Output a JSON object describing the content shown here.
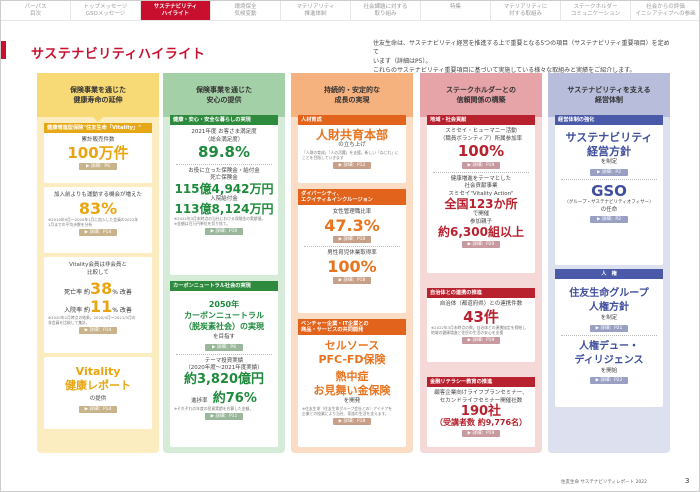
{
  "tabs": [
    {
      "label": "パーパス\n目次",
      "active": false
    },
    {
      "label": "トップメッセージ\nGSOメッセージ",
      "active": false
    },
    {
      "label": "サステナビリティ\nハイライト",
      "active": true
    },
    {
      "label": "環境保全\n気候変動",
      "active": false
    },
    {
      "label": "マテリアリティ\n推進体制",
      "active": false
    },
    {
      "label": "社会課題に対する\n取り組み",
      "active": false
    },
    {
      "label": "特集",
      "active": false
    },
    {
      "label": "マテリアリティに\n対する取組み",
      "active": false
    },
    {
      "label": "ステークホルダー\nコミュニケーション",
      "active": false
    },
    {
      "label": "社会からの評価\nイニシアティブへの参画",
      "active": false
    }
  ],
  "title": "サステナビリティハイライト",
  "intro": [
    "住友生命は、サステナビリティ経営を推進する上で重要となる5つの項目（サステナビリティ重要項目）を定めて",
    "います（詳細はP5）。",
    "これらのサステナビリティ重要項目に基づいて実施している様々な取組みと実績をご紹介します。"
  ],
  "columns": {
    "c1": {
      "header": "保険事業を通じた\n健康寿命の延伸",
      "card1": {
        "head": "健康増進型保険\"住友生命「Vitality」\"",
        "l1": "累計販売件数",
        "v1": "100万件",
        "pill": "▶ 詳細：P6"
      },
      "card2": {
        "l1": "加入前よりも運動する機会が増えた",
        "v1": "83%",
        "note": "※2019年9月〜2020年1月に加入した会員の2022年\n1月までの平均歩数を分析",
        "pill": "▶ 詳細：P14"
      },
      "card3": {
        "l1": "Vitality会員は非会員と\n比較して",
        "r1a": "死亡率 約",
        "r1b": "38",
        "r1c": "% 改善",
        "r2a": "入院率 約",
        "r2b": "11",
        "r2c": "% 改善",
        "note": "※2020年2月時点の結果。2020/4月〜2021/3月の\n非会員を比較して集計。",
        "pill": "▶ 詳細：P14"
      },
      "card4": {
        "v1": "Vitality\n健康レポート",
        "l1": "の提供",
        "pill": "▶ 詳細：P14"
      }
    },
    "c2": {
      "header": "保険事業を通じた\n安心の提供",
      "card1": {
        "head": "健康・安心・安全な暮らしの実現",
        "l1": "2021年度 お客さま満足度\n（総合満足度）",
        "v1": "89.8%",
        "l2": "お役に立った保険金・給付金",
        "l3": "死亡保険金",
        "v2": "115億4,942万円",
        "l4": "入院給付金",
        "v3": "113億8,124万円",
        "note": "※2022年3月末時点の当社における保険金の実績値。\n※金額は百万円単位を切り捨て。",
        "pill": "▶ 詳細：P16"
      },
      "card2": {
        "head": "カーボンニュートラル社会の実現",
        "v1": "2050年\nカーボンニュートラル\n（脱炭素社会）の実現",
        "l1": "を目指す",
        "pill": "▶ 詳細：P8",
        "l2": "テーマ投資実績\n（2020年度〜2021年度実績）",
        "v2": "約3,820億円",
        "l3": "進捗率",
        "v3": "約76%",
        "note": "※それぞれの年度の投資実績を合算した金額。",
        "pill2": "▶ 詳細：P11"
      }
    },
    "c3": {
      "header": "持続的・安定的な\n成長の実現",
      "card1": {
        "head": "人材育成",
        "v1": "人財共育本部",
        "l1": "の立ち上げ",
        "note": "「人財の育成」「人の活躍」を支援。新しい「ねじれ」に\nことを目指していきます",
        "pill": "▶ 詳細：P12"
      },
      "card2": {
        "head": "ダイバーシティ、\nエクイティ＆インクルージョン",
        "l1": "女性管理職比率",
        "v1": "47.3%",
        "pill": "▶ 詳細：P18",
        "l2": "男性育児休業取得率",
        "v2": "100%",
        "pill2": "▶ 詳細：P18"
      },
      "card3": {
        "head": "ベンチャー企業・IT企業との\n商品・サービスの共同開発",
        "v1": "セルソース\nPFC-FD保険",
        "v2": "熱中症\nお見舞い金保険",
        "l1": "を開発",
        "note": "※住友生命（住友生命グループ会社との）アイデアを\n企業との協業により当社、家族の生活を支えます。",
        "pill": "▶ 詳細：P18"
      }
    },
    "c4": {
      "header": "ステークホルダーとの\n信頼関係の構築",
      "card1": {
        "head": "地域・社会貢献",
        "l1": "スミセイ・ヒューマニー活動\n（職員ボランティア）所属参加率",
        "v1": "100%",
        "pill": "▶ 詳細：P19",
        "l2": "健康増進をテーマとした\n社会貢献事業\nスミセイ\"Vitality Action\"",
        "v2": "全国123か所",
        "l3": "で開催\n参加親子",
        "v3": "約6,300組以上",
        "pill2": "▶ 詳細：P20"
      },
      "card2": {
        "head": "自治体との連携の推進",
        "l1": "自治体（都道府県）との連携件数",
        "v1": "43件",
        "note": "※2022年3月末時点の数。自治体との連携協定を締結し\n地域の健康増進と住民の生活の安心を支援",
        "pill": "▶ 詳細：P19"
      },
      "card3": {
        "head": "金融リテラシー教育の推進",
        "l1": "顧客企業向けライフプランセミナー、\nセカンドライフセミナー開催社数",
        "v1": "190社",
        "v2": "（受講者数 約9,776名）",
        "pill": "▶ 詳細：P19"
      }
    },
    "c5": {
      "header": "サステナビリティを支える\n経営体制",
      "card1": {
        "head": "経営体制の強化",
        "v1": "サステナビリティ\n経営方針",
        "l1": "を制定",
        "pill": "▶ 詳細：P2",
        "v2": "GSO",
        "l2": "（グループ・サステナビリティオフィサー）",
        "l3": "の任命",
        "pill2": "▶ 詳細：P2"
      },
      "card2": {
        "head": "人　権",
        "v1": "住友生命グループ\n人権方針",
        "l1": "を制定",
        "pill": "▶ 詳細：P21",
        "v2": "人権デュー・\nディリジェンス",
        "l2": "を開始",
        "pill2": "▶ 詳細：P22"
      }
    }
  },
  "footer": "住友生命 サステナビリティレポート 2022",
  "page_number": "3"
}
